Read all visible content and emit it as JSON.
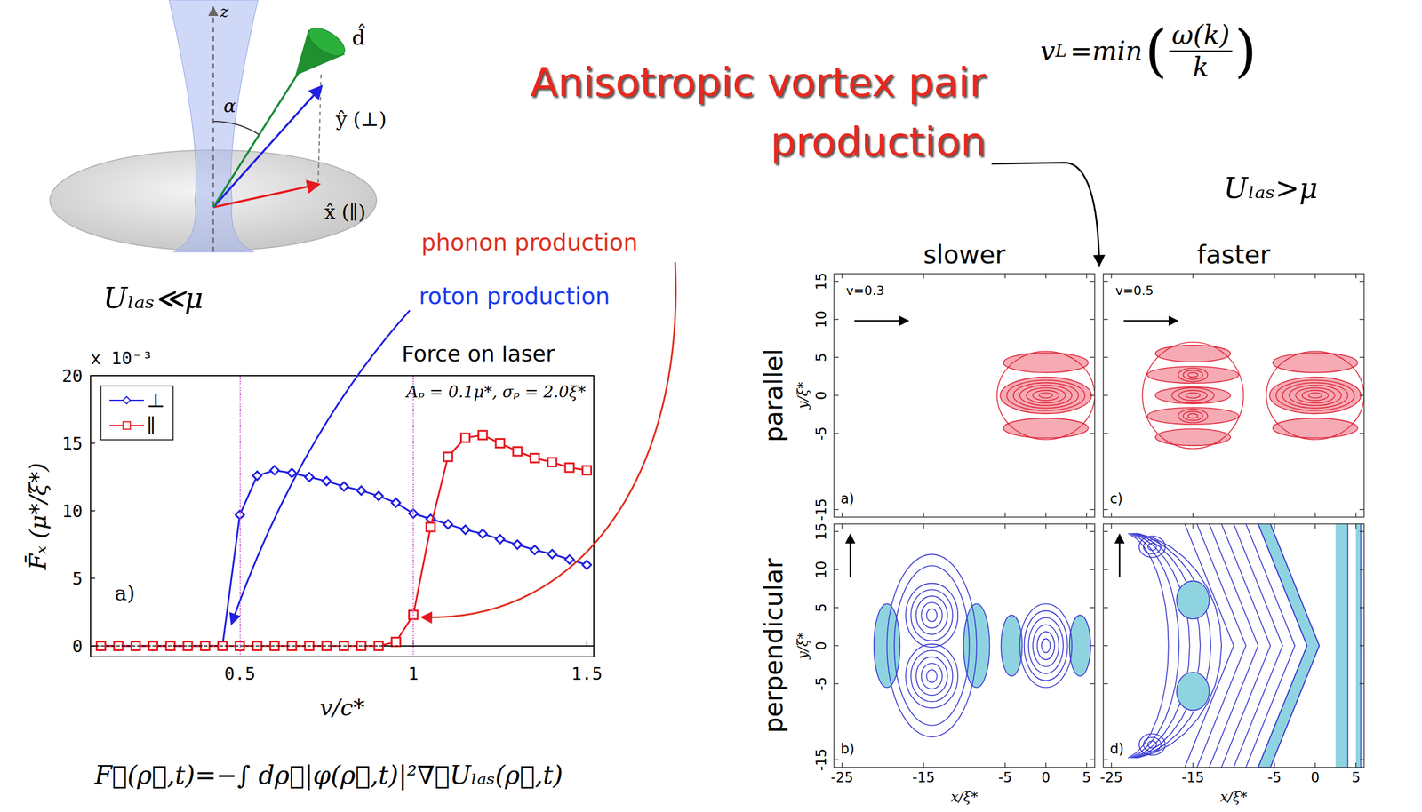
{
  "chart_data": {
    "type": "line",
    "title": "Force on laser",
    "x_label": "v/c*",
    "y_label": "F̄ₓ (μ*/ξ*)",
    "y_multiplier": "x 10⁻³",
    "annotations": [
      "Aₚ = 0.1μ*, σₚ = 2.0ξ*",
      "a)"
    ],
    "x": [
      0.1,
      0.15,
      0.2,
      0.25,
      0.3,
      0.35,
      0.4,
      0.45,
      0.5,
      0.55,
      0.6,
      0.65,
      0.7,
      0.75,
      0.8,
      0.85,
      0.9,
      0.95,
      1.0,
      1.05,
      1.1,
      1.15,
      1.2,
      1.25,
      1.3,
      1.35,
      1.4,
      1.45,
      1.5
    ],
    "series": [
      {
        "name": "⊥",
        "color": "#1f1fe0",
        "marker": "diamond",
        "values": [
          0,
          0,
          0,
          0,
          0,
          0,
          0,
          0,
          9.7,
          12.6,
          13.0,
          12.8,
          12.5,
          12.2,
          11.8,
          11.5,
          11.1,
          10.6,
          9.8,
          9.4,
          9.0,
          8.6,
          8.3,
          7.9,
          7.5,
          7.1,
          6.8,
          6.4,
          6.0
        ]
      },
      {
        "name": "∥",
        "color": "#e8191e",
        "marker": "square",
        "values": [
          0,
          0,
          0,
          0,
          0,
          0,
          0,
          0,
          0,
          0,
          0,
          0,
          0,
          0,
          0,
          0,
          0,
          0.3,
          2.3,
          8.8,
          14.0,
          15.4,
          15.6,
          15.0,
          14.4,
          13.9,
          13.6,
          13.2,
          13.0
        ]
      }
    ],
    "xlim": [
      0.07,
      1.52
    ],
    "xticks": [
      0.5,
      1,
      1.5
    ],
    "ylim": [
      -0.8,
      20
    ],
    "yticks": [
      0,
      5,
      10,
      15,
      20
    ],
    "reference_lines": {
      "x": [
        0.5,
        1
      ],
      "y": [
        0
      ]
    },
    "legend": "upper left",
    "grid": false
  },
  "slide": {
    "title": "Anisotropic vortex pair production",
    "formula_vl": {
      "base": "v",
      "sub": "L",
      "op": "=min",
      "numerator": "ω(k)",
      "denominator": "k"
    },
    "condition_strong": "Uₗₐₛ>μ",
    "condition_weak": "Uₗₐₛ≪μ",
    "phonon_label": "phonon production",
    "roton_label": "roton production",
    "force_formula": "F⃗(ρ⃗,t)=−∫ dρ⃗|φ(ρ⃗,t)|²∇⃗Uₗₐₛ(ρ⃗,t)",
    "schematic": {
      "axis_label": "z",
      "angle_label": "α",
      "dipole_label": "d̂",
      "y_label": "ŷ (⊥)",
      "x_label": "x̂ (∥)"
    },
    "contours": {
      "column_heads": [
        "slower",
        "faster"
      ],
      "row_heads": [
        "parallel",
        "perpendicular"
      ],
      "xlabel": "x/ξ*",
      "ylabel": "y/ξ*",
      "xlim": [
        -26,
        6
      ],
      "xticks": [
        -25,
        -15,
        -5,
        0,
        5
      ],
      "ylim": [
        -16,
        16
      ],
      "yticks": [
        -15,
        -5,
        0,
        5,
        10,
        15
      ],
      "panels": [
        [
          {
            "letter": "a)",
            "velocity_label": "v=0.3",
            "direction": "right"
          },
          {
            "letter": "c)",
            "velocity_label": "v=0.5",
            "direction": "right"
          }
        ],
        [
          {
            "letter": "b)",
            "direction": "up"
          },
          {
            "letter": "d)",
            "direction": "up"
          }
        ]
      ]
    }
  }
}
